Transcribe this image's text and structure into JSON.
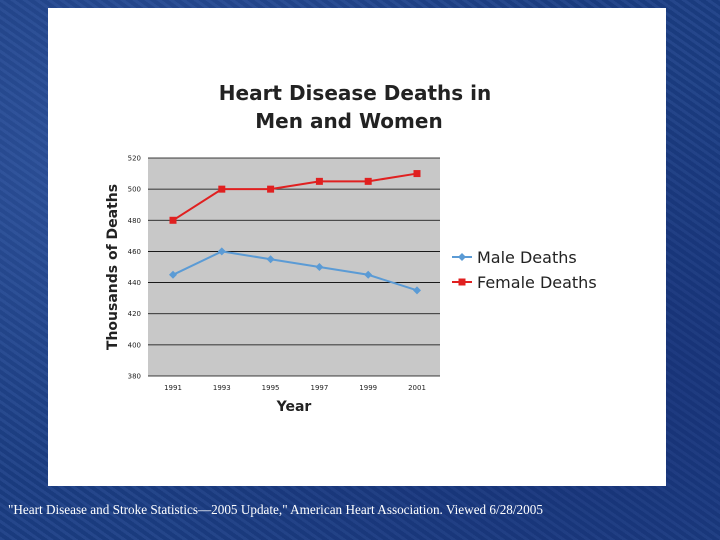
{
  "chart_data": {
    "type": "line",
    "title": "Heart Disease Deaths in Men and Women",
    "title_lines": [
      "Heart Disease Deaths in",
      "Men and Women"
    ],
    "xlabel": "Year",
    "ylabel": "Thousands of Deaths",
    "categories": [
      "1991",
      "1993",
      "1995",
      "1997",
      "1999",
      "2001"
    ],
    "ylim": [
      380,
      520
    ],
    "yticks": [
      380,
      400,
      420,
      440,
      460,
      480,
      500,
      520
    ],
    "grid": true,
    "legend_position": "right",
    "series": [
      {
        "name": "Male Deaths",
        "color": "#5b9bd5",
        "marker": "diamond",
        "values": [
          445,
          460,
          455,
          450,
          445,
          435
        ]
      },
      {
        "name": "Female Deaths",
        "color": "#e02020",
        "marker": "square",
        "values": [
          480,
          500,
          500,
          505,
          505,
          510
        ]
      }
    ],
    "plot_background": "#c8c8c8"
  },
  "caption": "\"Heart Disease and Stroke Statistics—2005 Update,\" American Heart Association. Viewed 6/28/2005"
}
